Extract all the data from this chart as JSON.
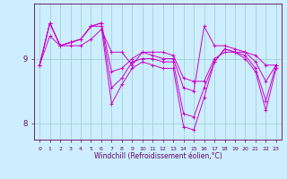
{
  "xlabel": "Windchill (Refroidissement éolien,°C)",
  "bg_color": "#cceeff",
  "line_color": "#cc00cc",
  "grid_color": "#99cccc",
  "tick_color": "#660066",
  "label_color": "#660066",
  "hours": [
    0,
    1,
    2,
    3,
    4,
    5,
    6,
    7,
    8,
    9,
    10,
    11,
    12,
    13,
    14,
    15,
    16,
    17,
    18,
    19,
    20,
    21,
    22,
    23
  ],
  "series": [
    [
      8.9,
      9.35,
      9.2,
      9.2,
      9.2,
      9.3,
      9.45,
      9.1,
      9.1,
      8.9,
      9.1,
      9.1,
      9.1,
      9.05,
      8.7,
      8.65,
      8.65,
      9.0,
      9.1,
      9.1,
      9.1,
      9.05,
      8.9,
      8.9
    ],
    [
      8.9,
      9.55,
      9.2,
      9.25,
      9.3,
      9.5,
      9.55,
      8.8,
      8.85,
      9.0,
      9.1,
      9.05,
      9.0,
      9.0,
      8.55,
      8.5,
      9.5,
      9.2,
      9.2,
      9.15,
      9.1,
      8.95,
      8.65,
      8.9
    ],
    [
      8.9,
      9.55,
      9.2,
      9.25,
      9.3,
      9.5,
      9.55,
      8.55,
      8.7,
      8.95,
      9.0,
      9.0,
      8.95,
      8.95,
      8.15,
      8.1,
      8.55,
      8.95,
      9.15,
      9.1,
      9.05,
      8.85,
      8.35,
      8.9
    ],
    [
      8.9,
      9.55,
      9.2,
      9.25,
      9.3,
      9.5,
      9.5,
      8.3,
      8.6,
      8.85,
      8.95,
      8.9,
      8.85,
      8.85,
      7.95,
      7.9,
      8.4,
      8.95,
      9.15,
      9.1,
      9.0,
      8.8,
      8.2,
      8.85
    ]
  ],
  "yticks": [
    8,
    9
  ],
  "ylim": [
    7.75,
    9.85
  ],
  "xlim": [
    -0.5,
    23.5
  ]
}
